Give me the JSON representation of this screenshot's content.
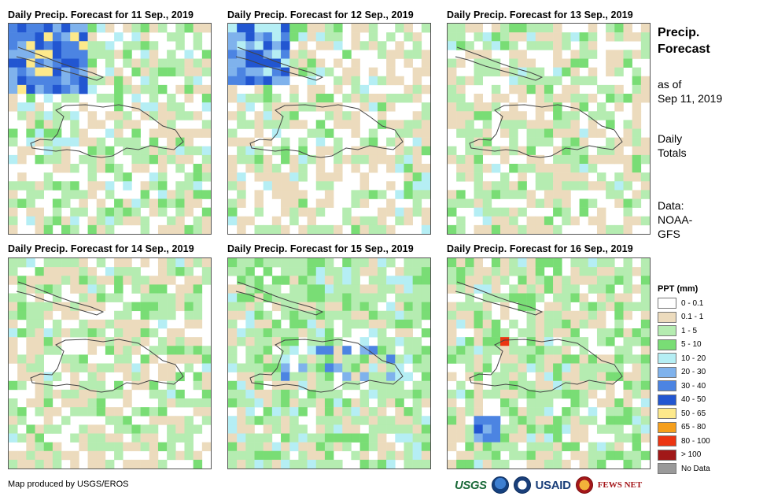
{
  "panels": [
    {
      "title": "Daily Precip. Forecast for 11 Sep., 2019",
      "day": "11 Sep."
    },
    {
      "title": "Daily Precip. Forecast for 12 Sep., 2019",
      "day": "12 Sep."
    },
    {
      "title": "Daily Precip. Forecast for 13 Sep., 2019",
      "day": "13 Sep."
    },
    {
      "title": "Daily Precip. Forecast for 14 Sep., 2019",
      "day": "14 Sep."
    },
    {
      "title": "Daily Precip. Forecast for 15 Sep., 2019",
      "day": "15 Sep."
    },
    {
      "title": "Daily Precip. Forecast for 16 Sep., 2019",
      "day": "16 Sep."
    }
  ],
  "side": {
    "title_line1": "Precip.",
    "title_line2": "Forecast",
    "asof_line1": "as of",
    "asof_line2": "Sep 11, 2019",
    "totals_line1": "Daily",
    "totals_line2": "Totals",
    "data_line1": "Data:",
    "data_line2": "NOAA-",
    "data_line3": "GFS"
  },
  "legend": {
    "title": "PPT (mm)",
    "items": [
      {
        "label": "0 - 0.1",
        "color": "#ffffff"
      },
      {
        "label": "0.1 - 1",
        "color": "#ecdbbd"
      },
      {
        "label": "1 - 5",
        "color": "#b5ecb1"
      },
      {
        "label": "5 - 10",
        "color": "#79dd75"
      },
      {
        "label": "10 - 20",
        "color": "#b5eef4"
      },
      {
        "label": "20 - 30",
        "color": "#7fb2ec"
      },
      {
        "label": "30 - 40",
        "color": "#4c84e2"
      },
      {
        "label": "40 - 50",
        "color": "#2256d1"
      },
      {
        "label": "50 - 65",
        "color": "#fde98b"
      },
      {
        "label": "65 - 80",
        "color": "#f59f1c"
      },
      {
        "label": "80 - 100",
        "color": "#ec3512"
      },
      {
        "label": "> 100",
        "color": "#a11818"
      },
      {
        "label": "No Data",
        "color": "#9a9a9a"
      }
    ]
  },
  "footer": {
    "credit": "Map produced by USGS/EROS",
    "logos": {
      "usgs": "USGS",
      "noaa": "noaa-logo",
      "usaid": "USAID",
      "fews": "FEWS NET"
    }
  }
}
